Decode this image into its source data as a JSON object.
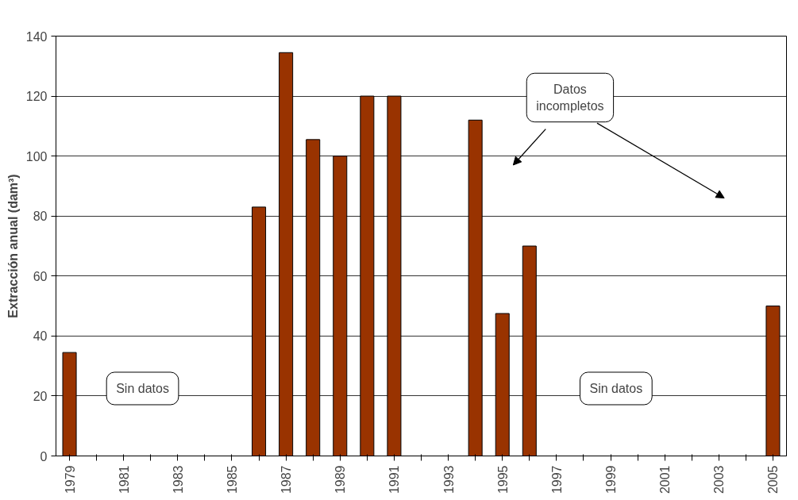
{
  "chart_data": {
    "type": "bar",
    "ylabel": "Extracción anual (dam³)",
    "categories": [
      "1979",
      null,
      "1981",
      null,
      "1983",
      null,
      "1985",
      null,
      "1987",
      null,
      "1989",
      null,
      "1991",
      null,
      "1993",
      null,
      "1995",
      null,
      "1997",
      null,
      "1999",
      null,
      "2001",
      null,
      "2003",
      null,
      "2005"
    ],
    "values": [
      34.5,
      null,
      null,
      null,
      null,
      null,
      null,
      83,
      134.5,
      105.5,
      100,
      120,
      120,
      null,
      null,
      112,
      47.5,
      70,
      null,
      null,
      null,
      null,
      null,
      null,
      null,
      null,
      50
    ],
    "color": "#993300",
    "ylim": [
      0,
      140
    ],
    "yticks": [
      0,
      20,
      40,
      60,
      80,
      100,
      120,
      140
    ],
    "grid": "y",
    "annotations": [
      "Sin datos",
      "Sin datos",
      "Datos\nincompletos"
    ]
  }
}
